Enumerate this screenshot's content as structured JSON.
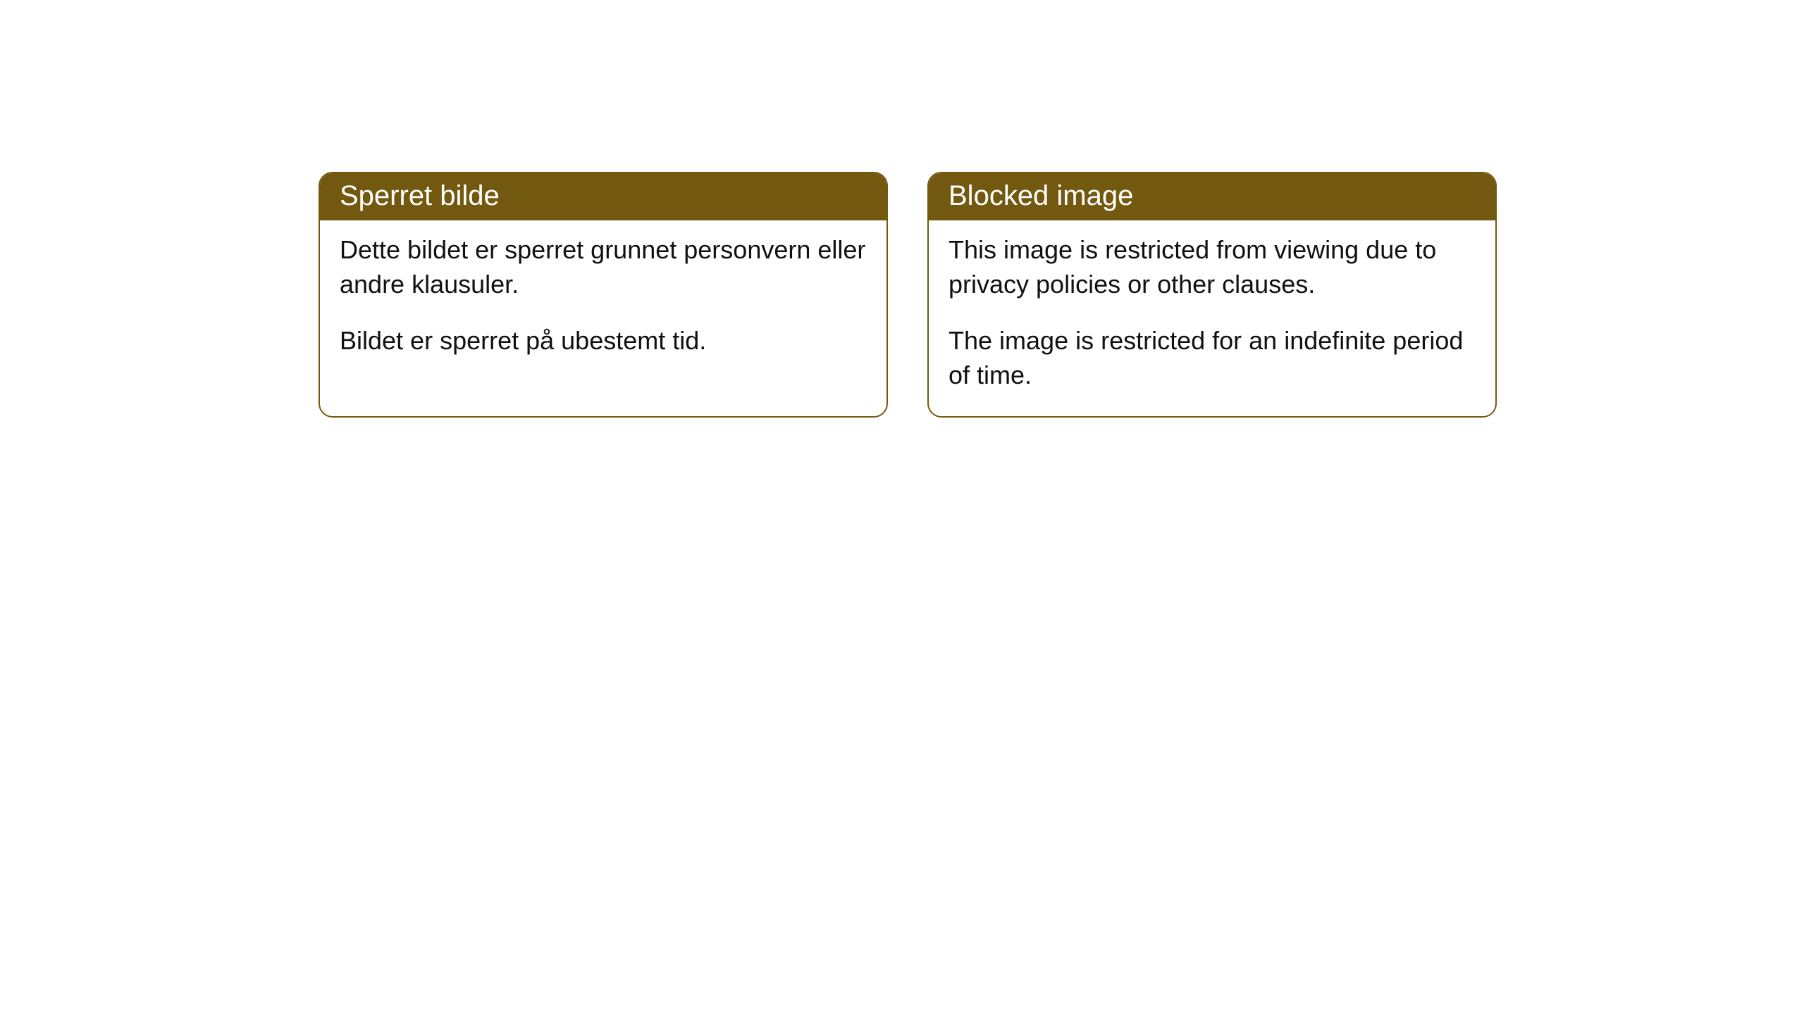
{
  "cards": [
    {
      "title": "Sperret bilde",
      "paragraph1": "Dette bildet er sperret grunnet personvern eller andre klausuler.",
      "paragraph2": "Bildet er sperret på ubestemt tid."
    },
    {
      "title": "Blocked image",
      "paragraph1": "This image is restricted from viewing due to privacy policies or other clauses.",
      "paragraph2": "The image is restricted for an indefinite period of time."
    }
  ],
  "style": {
    "header_background": "#735910",
    "header_text_color": "#ffffff",
    "border_color": "#735910",
    "body_text_color": "#111111",
    "background_color": "#ffffff",
    "border_radius": 20,
    "title_fontsize": 40,
    "body_fontsize": 36
  }
}
